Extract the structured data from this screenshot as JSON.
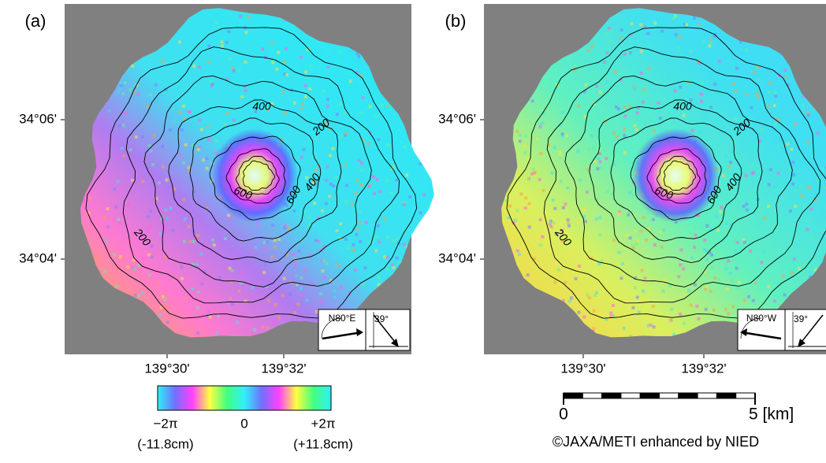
{
  "panels": [
    {
      "label": "(a)",
      "y_labels": [
        "34°06'",
        "34°04'"
      ],
      "x_labels": [
        "139°30'",
        "139°32'"
      ],
      "contour_labels": [
        "400",
        "200",
        "600",
        "400",
        "200",
        "600"
      ],
      "direction": "N80°E",
      "incidence": "39°"
    },
    {
      "label": "(b)",
      "y_labels": [
        "34°06'",
        "34°04'"
      ],
      "x_labels": [
        "139°30'",
        "139°32'"
      ],
      "contour_labels": [
        "400",
        "200",
        "600",
        "400",
        "200",
        "600"
      ],
      "direction": "N80°W",
      "incidence": "39°"
    }
  ],
  "colorbar": {
    "min": "−2π",
    "min_cm": "(-11.8cm)",
    "mid": "0",
    "max": "+2π",
    "max_cm": "(+11.8cm)"
  },
  "scale_bar": {
    "start": "0",
    "end": "5 [km]"
  },
  "credit": "©JAXA/METI enhanced by NIED"
}
